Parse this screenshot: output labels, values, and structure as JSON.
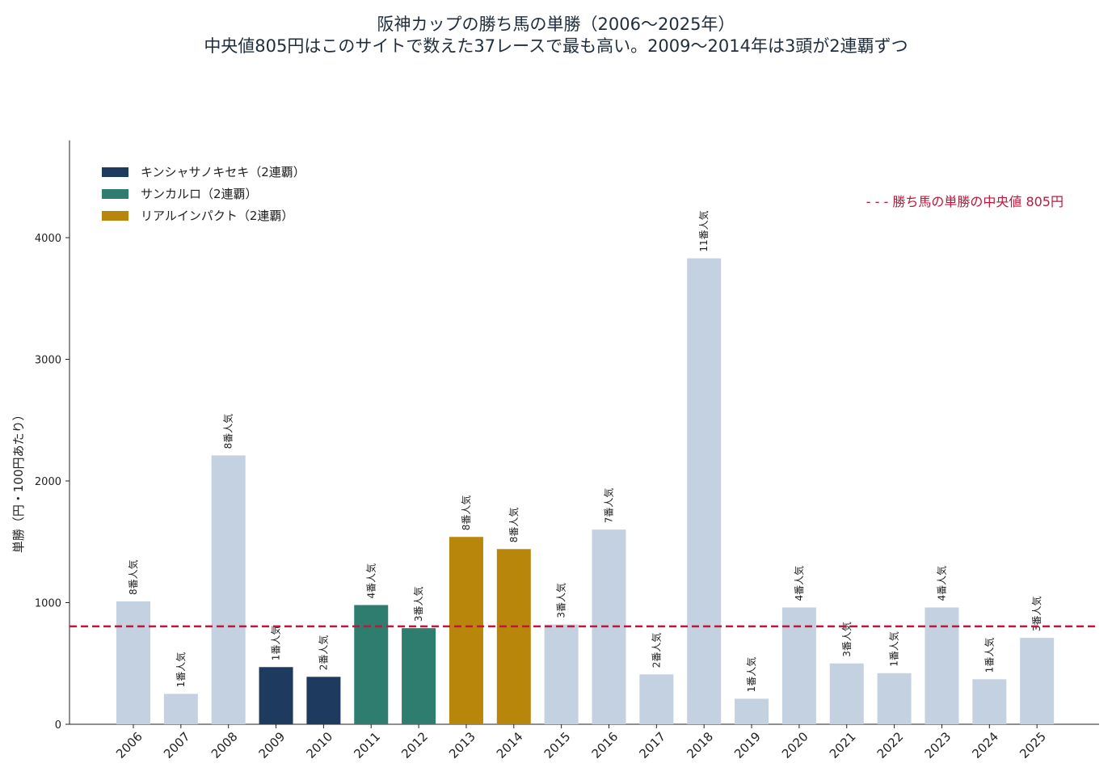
{
  "chart_data": {
    "type": "bar",
    "title": "阪神カップの勝ち馬の単勝（2006〜2025年）",
    "subtitle": "中央値805円はこのサイトで数えた37レースで最も高い。2009〜2014年は3頭が2連覇ずつ",
    "xlabel": "",
    "ylabel": "単勝（円・100円あたり）",
    "ylim": [
      0,
      4800
    ],
    "yticks": [
      0,
      1000,
      2000,
      3000,
      4000
    ],
    "grid": false,
    "legend_position": "top-left",
    "categories": [
      "2006",
      "2007",
      "2008",
      "2009",
      "2010",
      "2011",
      "2012",
      "2013",
      "2014",
      "2015",
      "2016",
      "2017",
      "2018",
      "2019",
      "2020",
      "2021",
      "2022",
      "2023",
      "2024",
      "2025"
    ],
    "values": [
      1010,
      250,
      2210,
      470,
      390,
      980,
      790,
      1540,
      1440,
      820,
      1600,
      410,
      3830,
      210,
      960,
      500,
      420,
      960,
      370,
      710
    ],
    "popularity": [
      "8番人気",
      "1番人気",
      "8番人気",
      "1番人気",
      "2番人気",
      "4番人気",
      "3番人気",
      "8番人気",
      "8番人気",
      "3番人気",
      "7番人気",
      "2番人気",
      "11番人気",
      "1番人気",
      "4番人気",
      "3番人気",
      "1番人気",
      "4番人気",
      "1番人気",
      "3番人気"
    ],
    "groups": [
      "other",
      "other",
      "other",
      "kinshasa",
      "kinshasa",
      "sancarlo",
      "sancarlo",
      "real",
      "real",
      "other",
      "other",
      "other",
      "other",
      "other",
      "other",
      "other",
      "other",
      "other",
      "other",
      "other"
    ],
    "colors": {
      "other": "#c4d1e1",
      "kinshasa": "#1f3a5f",
      "sancarlo": "#2e7d6e",
      "real": "#b8860b",
      "median": "#c0163b"
    },
    "legend": [
      {
        "group": "kinshasa",
        "label": "キンシャサノキセキ（2連覇）"
      },
      {
        "group": "sancarlo",
        "label": "サンカルロ（2連覇）"
      },
      {
        "group": "real",
        "label": "リアルインパクト（2連覇）"
      }
    ],
    "median_line": {
      "value": 805,
      "label": "- - -  勝ち馬の単勝の中央値 805円"
    }
  }
}
